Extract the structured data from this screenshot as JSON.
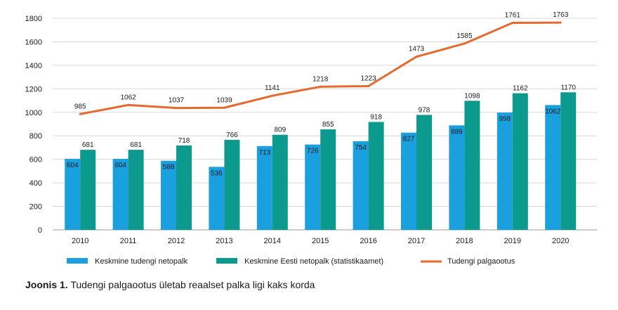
{
  "chart_data": {
    "type": "bar",
    "categories": [
      "2010",
      "2011",
      "2012",
      "2013",
      "2014",
      "2015",
      "2016",
      "2017",
      "2018",
      "2019",
      "2020"
    ],
    "series": [
      {
        "name": "Keskmine tudengi netopalk",
        "kind": "bar",
        "color": "#1aa0df",
        "values": [
          604,
          604,
          588,
          536,
          713,
          726,
          754,
          827,
          889,
          998,
          1062
        ]
      },
      {
        "name": "Keskmine Eesti netopalk (statistikaamet)",
        "kind": "bar",
        "color": "#0c9a8f",
        "values": [
          681,
          681,
          718,
          766,
          809,
          855,
          918,
          978,
          1098,
          1162,
          1170
        ]
      },
      {
        "name": "Tudengi palgaootus",
        "kind": "line",
        "color": "#e8692d",
        "values": [
          985,
          1062,
          1037,
          1039,
          1141,
          1218,
          1223,
          1473,
          1585,
          1761,
          1763
        ]
      }
    ],
    "yticks": [
      0,
      200,
      400,
      600,
      800,
      1000,
      1200,
      1400,
      1600,
      1800
    ],
    "ylim": [
      0,
      1800
    ],
    "grid": true,
    "legend": "bottom"
  },
  "caption": {
    "label": "Joonis 1.",
    "text": " Tudengi palgaootus ületab reaalset palka ligi kaks korda"
  }
}
